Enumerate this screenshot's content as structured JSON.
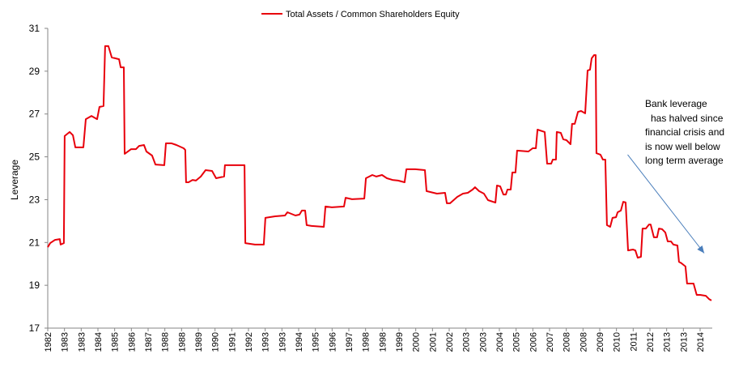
{
  "chart_data": {
    "type": "line",
    "title": "",
    "legend": {
      "position": "top-center",
      "entries": [
        "Total Assets / Common Shareholders Equity"
      ]
    },
    "xlabel": "",
    "ylabel": "Leverage",
    "xlim": [
      1982,
      2015
    ],
    "ylim": [
      17,
      31
    ],
    "yticks": [
      "17",
      "19",
      "21",
      "23",
      "25",
      "27",
      "29",
      "31"
    ],
    "ytick_values": [
      17,
      19,
      21,
      23,
      25,
      27,
      29,
      31
    ],
    "xtick_labels": [
      "1982",
      "1983",
      "1983",
      "1984",
      "1985",
      "1986",
      "1987",
      "1988",
      "1988",
      "1989",
      "1990",
      "1991",
      "1992",
      "1993",
      "1993",
      "1994",
      "1995",
      "1996",
      "1997",
      "1998",
      "1998",
      "1999",
      "2000",
      "2001",
      "2002",
      "2003",
      "2003",
      "2004",
      "2005",
      "2006",
      "2007",
      "2008",
      "2008",
      "2009",
      "2010",
      "2011",
      "2012",
      "2013",
      "2013",
      "2014"
    ],
    "grid": false,
    "series": [
      {
        "name": "Total Assets / Common Shareholders Equity",
        "color": "#e8000b",
        "points": [
          [
            1982.0,
            20.78
          ],
          [
            1982.12,
            20.97
          ],
          [
            1982.36,
            21.12
          ],
          [
            1982.6,
            21.16
          ],
          [
            1982.64,
            20.9
          ],
          [
            1982.8,
            20.97
          ],
          [
            1982.84,
            25.97
          ],
          [
            1983.09,
            26.16
          ],
          [
            1983.25,
            26.01
          ],
          [
            1983.37,
            25.44
          ],
          [
            1983.77,
            25.44
          ],
          [
            1983.89,
            26.76
          ],
          [
            1984.17,
            26.91
          ],
          [
            1984.45,
            26.76
          ],
          [
            1984.57,
            27.33
          ],
          [
            1984.77,
            27.37
          ],
          [
            1984.85,
            30.17
          ],
          [
            1985.01,
            30.17
          ],
          [
            1985.18,
            29.64
          ],
          [
            1985.54,
            29.56
          ],
          [
            1985.62,
            29.18
          ],
          [
            1985.78,
            29.18
          ],
          [
            1985.82,
            25.14
          ],
          [
            1986.14,
            25.36
          ],
          [
            1986.38,
            25.36
          ],
          [
            1986.54,
            25.51
          ],
          [
            1986.78,
            25.55
          ],
          [
            1986.9,
            25.25
          ],
          [
            1987.18,
            25.06
          ],
          [
            1987.35,
            24.64
          ],
          [
            1987.79,
            24.61
          ],
          [
            1987.87,
            25.63
          ],
          [
            1988.15,
            25.63
          ],
          [
            1988.39,
            25.55
          ],
          [
            1988.75,
            25.4
          ],
          [
            1988.83,
            25.32
          ],
          [
            1988.87,
            23.81
          ],
          [
            1988.99,
            23.81
          ],
          [
            1989.19,
            23.92
          ],
          [
            1989.36,
            23.89
          ],
          [
            1989.6,
            24.08
          ],
          [
            1989.84,
            24.38
          ],
          [
            1990.16,
            24.34
          ],
          [
            1990.36,
            24.0
          ],
          [
            1990.76,
            24.08
          ],
          [
            1990.8,
            24.61
          ],
          [
            1991.77,
            24.61
          ],
          [
            1991.81,
            20.97
          ],
          [
            1992.29,
            20.9
          ],
          [
            1992.73,
            20.9
          ],
          [
            1992.81,
            22.15
          ],
          [
            1993.29,
            22.22
          ],
          [
            1993.78,
            22.26
          ],
          [
            1993.9,
            22.41
          ],
          [
            1994.3,
            22.26
          ],
          [
            1994.5,
            22.3
          ],
          [
            1994.62,
            22.49
          ],
          [
            1994.78,
            22.49
          ],
          [
            1994.86,
            21.81
          ],
          [
            1995.1,
            21.77
          ],
          [
            1995.71,
            21.73
          ],
          [
            1995.79,
            22.68
          ],
          [
            1996.11,
            22.64
          ],
          [
            1996.71,
            22.68
          ],
          [
            1996.79,
            23.09
          ],
          [
            1997.11,
            23.02
          ],
          [
            1997.72,
            23.05
          ],
          [
            1997.8,
            24.0
          ],
          [
            1998.12,
            24.15
          ],
          [
            1998.32,
            24.08
          ],
          [
            1998.6,
            24.15
          ],
          [
            1998.84,
            24.0
          ],
          [
            1999.12,
            23.92
          ],
          [
            1999.4,
            23.89
          ],
          [
            1999.72,
            23.81
          ],
          [
            1999.81,
            24.42
          ],
          [
            2000.25,
            24.42
          ],
          [
            2000.73,
            24.38
          ],
          [
            2000.81,
            23.4
          ],
          [
            2001.33,
            23.28
          ],
          [
            2001.73,
            23.32
          ],
          [
            2001.82,
            22.83
          ],
          [
            2001.98,
            22.83
          ],
          [
            2002.34,
            23.13
          ],
          [
            2002.62,
            23.28
          ],
          [
            2002.86,
            23.32
          ],
          [
            2003.1,
            23.47
          ],
          [
            2003.22,
            23.58
          ],
          [
            2003.42,
            23.4
          ],
          [
            2003.66,
            23.28
          ],
          [
            2003.86,
            22.98
          ],
          [
            2004.23,
            22.86
          ],
          [
            2004.31,
            23.66
          ],
          [
            2004.47,
            23.62
          ],
          [
            2004.63,
            23.24
          ],
          [
            2004.75,
            23.24
          ],
          [
            2004.83,
            23.47
          ],
          [
            2004.99,
            23.47
          ],
          [
            2005.07,
            24.27
          ],
          [
            2005.23,
            24.27
          ],
          [
            2005.31,
            25.29
          ],
          [
            2005.87,
            25.25
          ],
          [
            2006.08,
            25.4
          ],
          [
            2006.24,
            25.4
          ],
          [
            2006.32,
            26.27
          ],
          [
            2006.68,
            26.16
          ],
          [
            2006.8,
            24.68
          ],
          [
            2007.0,
            24.68
          ],
          [
            2007.08,
            24.87
          ],
          [
            2007.24,
            24.87
          ],
          [
            2007.28,
            26.16
          ],
          [
            2007.48,
            26.12
          ],
          [
            2007.6,
            25.82
          ],
          [
            2007.76,
            25.78
          ],
          [
            2007.96,
            25.59
          ],
          [
            2008.04,
            26.54
          ],
          [
            2008.17,
            26.54
          ],
          [
            2008.33,
            27.1
          ],
          [
            2008.49,
            27.14
          ],
          [
            2008.69,
            27.03
          ],
          [
            2008.81,
            29.03
          ],
          [
            2008.93,
            29.07
          ],
          [
            2009.01,
            29.6
          ],
          [
            2009.13,
            29.75
          ],
          [
            2009.21,
            29.75
          ],
          [
            2009.25,
            25.17
          ],
          [
            2009.45,
            25.1
          ],
          [
            2009.57,
            24.87
          ],
          [
            2009.69,
            24.87
          ],
          [
            2009.77,
            21.81
          ],
          [
            2009.93,
            21.73
          ],
          [
            2010.05,
            22.15
          ],
          [
            2010.22,
            22.18
          ],
          [
            2010.3,
            22.41
          ],
          [
            2010.46,
            22.49
          ],
          [
            2010.58,
            22.9
          ],
          [
            2010.7,
            22.87
          ],
          [
            2010.82,
            20.63
          ],
          [
            2011.06,
            20.67
          ],
          [
            2011.18,
            20.63
          ],
          [
            2011.3,
            20.29
          ],
          [
            2011.46,
            20.33
          ],
          [
            2011.54,
            21.65
          ],
          [
            2011.7,
            21.65
          ],
          [
            2011.86,
            21.84
          ],
          [
            2011.94,
            21.84
          ],
          [
            2012.1,
            21.24
          ],
          [
            2012.26,
            21.24
          ],
          [
            2012.35,
            21.65
          ],
          [
            2012.51,
            21.62
          ],
          [
            2012.67,
            21.47
          ],
          [
            2012.79,
            21.05
          ],
          [
            2012.95,
            21.05
          ],
          [
            2013.07,
            20.9
          ],
          [
            2013.27,
            20.86
          ],
          [
            2013.35,
            20.1
          ],
          [
            2013.47,
            20.03
          ],
          [
            2013.67,
            19.88
          ],
          [
            2013.75,
            19.08
          ],
          [
            2014.07,
            19.08
          ],
          [
            2014.23,
            18.55
          ],
          [
            2014.4,
            18.55
          ],
          [
            2014.68,
            18.51
          ],
          [
            2014.84,
            18.36
          ],
          [
            2014.96,
            18.29
          ]
        ]
      }
    ],
    "annotation": {
      "lines": [
        "Bank leverage",
        "has halved since",
        "financial crisis and",
        "is now well below",
        "long term average"
      ],
      "arrow_color": "#4a7ebb",
      "arrow_from": [
        2010.8,
        25.1
      ],
      "arrow_to": [
        2014.6,
        20.5
      ]
    },
    "axis_color": "#868686"
  }
}
